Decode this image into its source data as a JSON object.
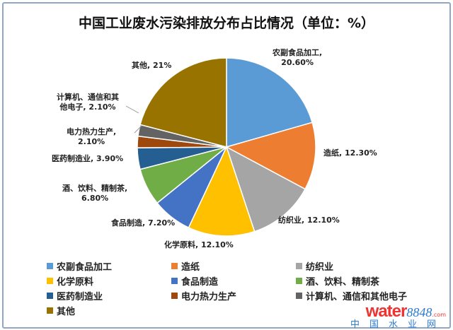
{
  "chart_data": {
    "type": "pie",
    "title": "中国工业废水污染排放分布占比情况（单位：%）",
    "categories": [
      "农副食品加工",
      "造纸",
      "纺织业",
      "化学原料",
      "食品制造",
      "酒、饮料、精制茶",
      "医药制造业",
      "电力热力生产",
      "计算机、通信和其他电子",
      "其他"
    ],
    "values": [
      20.6,
      12.3,
      12.1,
      12.1,
      7.2,
      6.8,
      3.9,
      2.1,
      2.1,
      21
    ],
    "data_labels": [
      "农副食品加工, 20.60%",
      "造纸, 12.30%",
      "纺织业, 12.10%",
      "化学原料, 12.10%",
      "食品制造, 7.20%",
      "酒、饮料、精制茶, 6.80%",
      "医药制造业, 3.90%",
      "电力热力生产, 2.10%",
      "计算机、通信和其他电子, 2.10%",
      "其他, 21%"
    ],
    "colors": [
      "#5B9BD5",
      "#ED7D31",
      "#A5A5A5",
      "#FFC000",
      "#4472C4",
      "#70AD47",
      "#255E91",
      "#9E480E",
      "#636363",
      "#997300"
    ],
    "legend_position": "bottom"
  },
  "labels": {
    "l0a": "农副食品加工,",
    "l0b": "20.60%",
    "l1": "造纸, 12.30%",
    "l2": "纺织业, 12.10%",
    "l3": "化学原料, 12.10%",
    "l4": "食品制造, 7.20%",
    "l5a": "酒、饮料、精制茶,",
    "l5b": "6.80%",
    "l6": "医药制造业, 3.90%",
    "l7a": "电力热力生产,",
    "l7b": "2.10%",
    "l8a": "计算机、通信和其",
    "l8b": "他电子, 2.10%",
    "l9": "其他, 21%"
  },
  "logo": {
    "text": "water",
    "num": "8848",
    "domain": ".com",
    "cn": "中国水业网"
  }
}
